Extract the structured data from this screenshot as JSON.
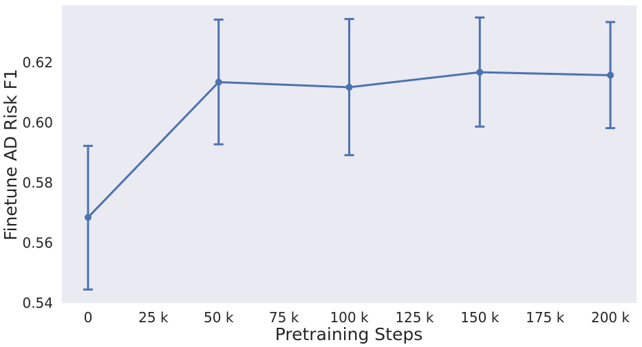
{
  "chart_data": {
    "type": "line",
    "title": "",
    "xlabel": "Pretraining Steps",
    "ylabel": "Finetune AD Risk F1",
    "x": [
      0,
      50,
      100,
      150,
      200
    ],
    "xlim": [
      -10,
      210
    ],
    "ylim": [
      0.54,
      0.639
    ],
    "xticks": [
      0,
      25,
      50,
      75,
      100,
      125,
      150,
      175,
      200
    ],
    "xtick_labels": [
      "0",
      "25 k",
      "50 k",
      "75 k",
      "100 k",
      "125 k",
      "150 k",
      "175 k",
      "200 k"
    ],
    "yticks": [
      0.54,
      0.56,
      0.58,
      0.6,
      0.62
    ],
    "ytick_labels": [
      "0.54",
      "0.56",
      "0.58",
      "0.60",
      "0.62"
    ],
    "series": [
      {
        "values": [
          0.5685,
          0.6135,
          0.6118,
          0.6168,
          0.6158
        ],
        "error_low": [
          0.5445,
          0.5928,
          0.5892,
          0.5987,
          0.5982
        ],
        "error_high": [
          0.5923,
          0.6343,
          0.6345,
          0.635,
          0.6335
        ],
        "color": "#4c72b0"
      }
    ],
    "grid": false,
    "background": "#eaeaf2",
    "legend": "none"
  }
}
